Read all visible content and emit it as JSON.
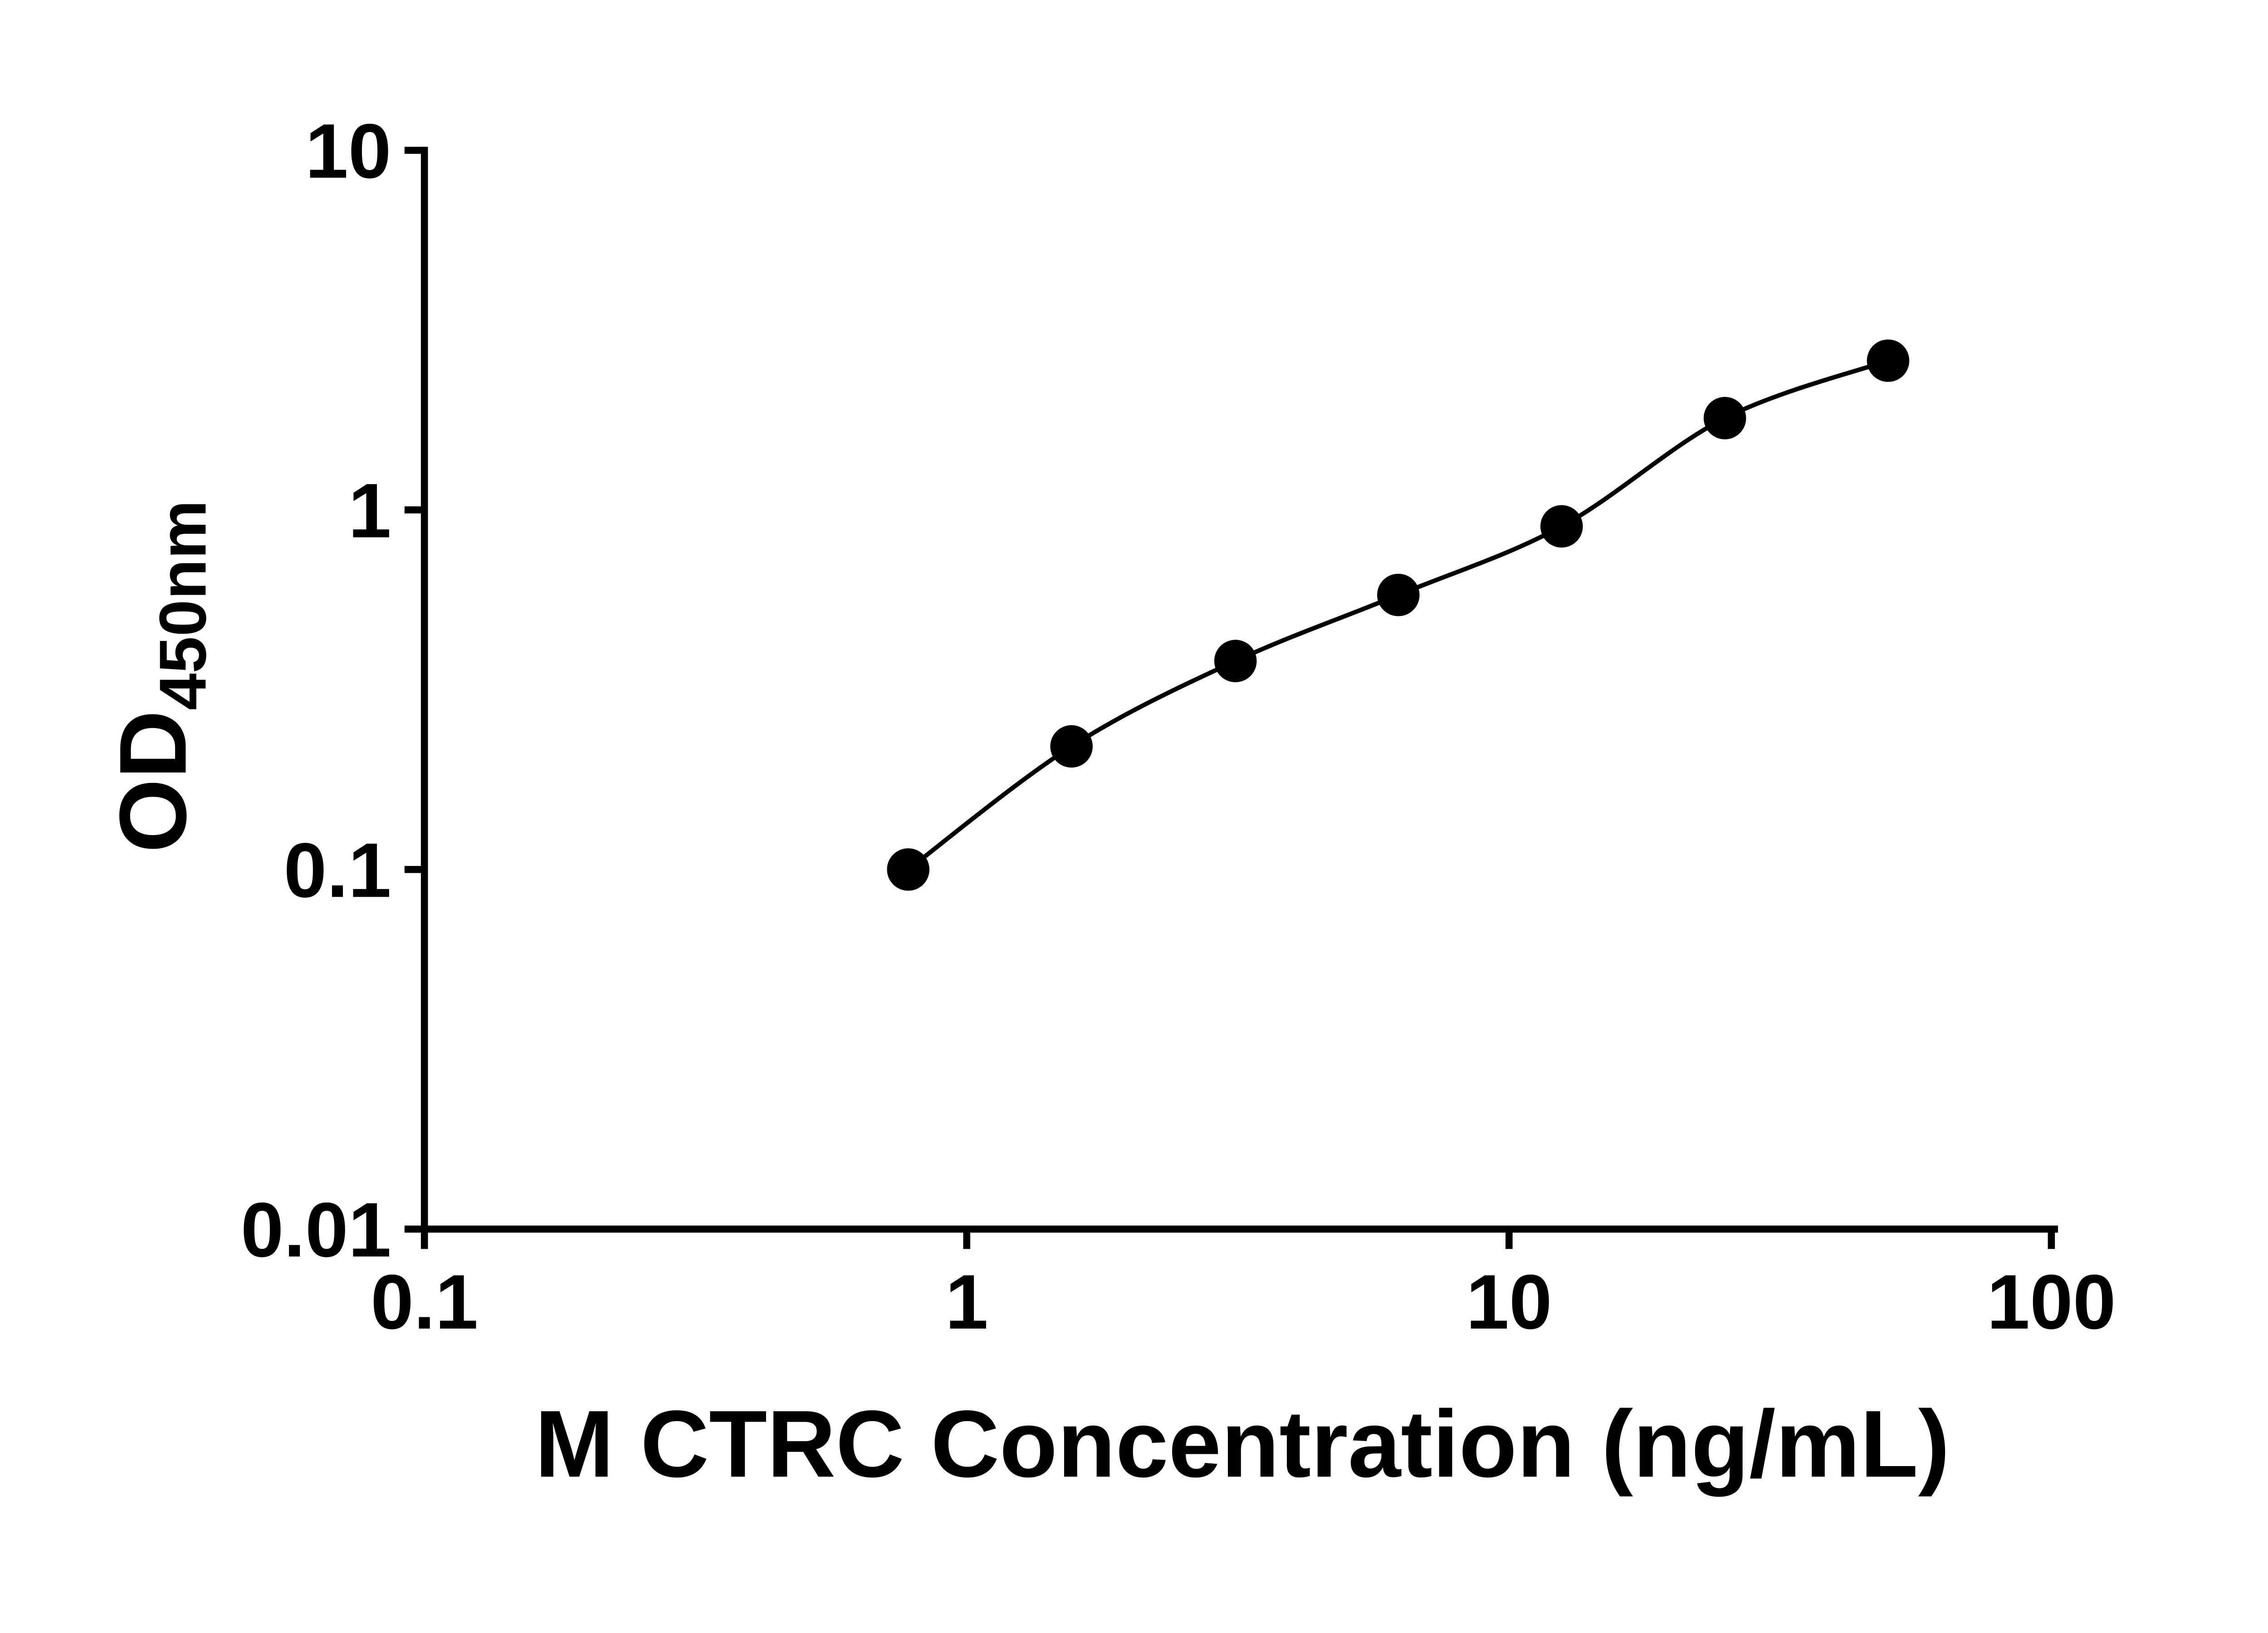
{
  "chart_data": {
    "type": "scatter",
    "title": "",
    "xlabel": "M CTRC Concentration (ng/mL)",
    "ylabel_main": "OD",
    "ylabel_sub": "450nm",
    "x_scale": "log",
    "y_scale": "log",
    "xlim": [
      0.1,
      100
    ],
    "ylim": [
      0.01,
      10
    ],
    "x_ticks": [
      0.1,
      1,
      10,
      100
    ],
    "x_tick_labels": [
      "0.1",
      "1",
      "10",
      "100"
    ],
    "y_ticks": [
      10,
      1,
      0.1,
      0.01
    ],
    "y_tick_labels": [
      "10",
      "1",
      "0.1",
      "0.01"
    ],
    "points": [
      {
        "x": 0.78,
        "y": 0.1
      },
      {
        "x": 1.56,
        "y": 0.22
      },
      {
        "x": 3.13,
        "y": 0.38
      },
      {
        "x": 6.25,
        "y": 0.58
      },
      {
        "x": 12.5,
        "y": 0.9
      },
      {
        "x": 25,
        "y": 1.8
      },
      {
        "x": 50,
        "y": 2.6
      }
    ],
    "grid": false,
    "legend": null,
    "marker_color": "#000000",
    "line_color": "#000000",
    "axis_color": "#000000",
    "background_color": "#ffffff"
  }
}
